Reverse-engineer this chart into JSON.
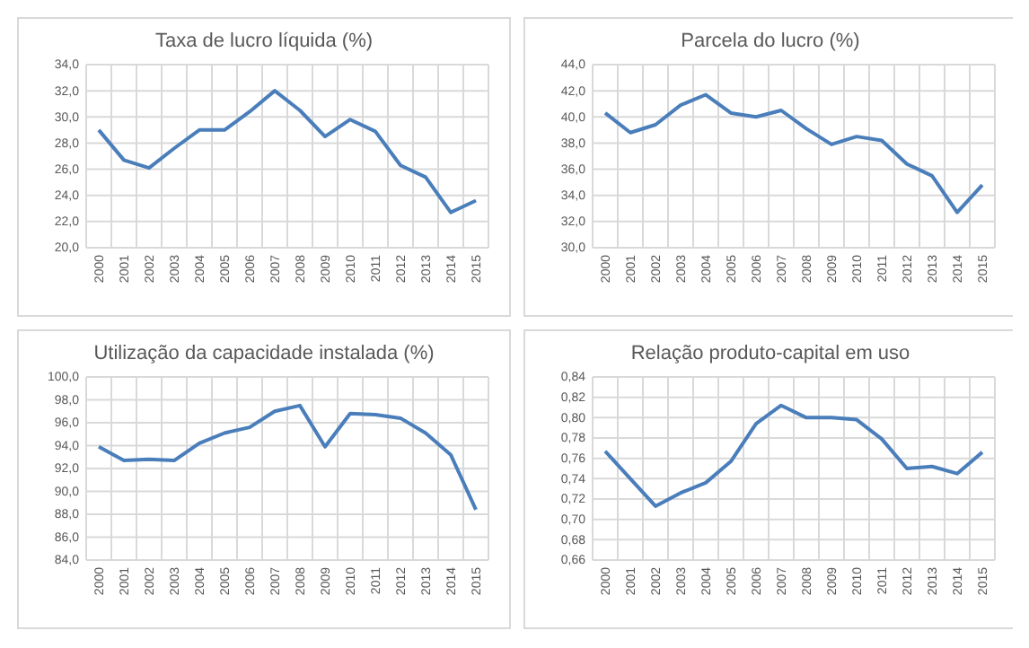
{
  "chart_data": [
    {
      "type": "line",
      "title": "Taxa de lucro líquida (%)",
      "categories": [
        "2000",
        "2001",
        "2002",
        "2003",
        "2004",
        "2005",
        "2006",
        "2007",
        "2008",
        "2009",
        "2010",
        "2011",
        "2012",
        "2013",
        "2014",
        "2015"
      ],
      "series": [
        {
          "color": "#4a7ebb",
          "values": [
            29.0,
            26.7,
            26.1,
            27.6,
            29.0,
            29.0,
            30.4,
            32.0,
            30.5,
            28.5,
            29.8,
            28.9,
            26.3,
            25.4,
            22.7,
            23.6
          ]
        }
      ],
      "ylim": [
        20,
        34
      ],
      "yticks": [
        {
          "value": 20,
          "label": "20,0"
        },
        {
          "value": 22,
          "label": "22,0"
        },
        {
          "value": 24,
          "label": "24,0"
        },
        {
          "value": 26,
          "label": "26,0"
        },
        {
          "value": 28,
          "label": "28,0"
        },
        {
          "value": 30,
          "label": "30,0"
        },
        {
          "value": 32,
          "label": "32,0"
        },
        {
          "value": 34,
          "label": "34,0"
        }
      ],
      "grid": true
    },
    {
      "type": "line",
      "title": "Parcela do lucro (%)",
      "categories": [
        "2000",
        "2001",
        "2002",
        "2003",
        "2004",
        "2005",
        "2006",
        "2007",
        "2008",
        "2009",
        "2010",
        "2011",
        "2012",
        "2013",
        "2014",
        "2015"
      ],
      "series": [
        {
          "color": "#4a7ebb",
          "values": [
            40.3,
            38.8,
            39.4,
            40.9,
            41.7,
            40.3,
            40.0,
            40.5,
            39.1,
            37.9,
            38.5,
            38.2,
            36.4,
            35.5,
            32.7,
            34.8
          ]
        }
      ],
      "ylim": [
        30,
        44
      ],
      "yticks": [
        {
          "value": 30,
          "label": "30,0"
        },
        {
          "value": 32,
          "label": "32,0"
        },
        {
          "value": 34,
          "label": "34,0"
        },
        {
          "value": 36,
          "label": "36,0"
        },
        {
          "value": 38,
          "label": "38,0"
        },
        {
          "value": 40,
          "label": "40,0"
        },
        {
          "value": 42,
          "label": "42,0"
        },
        {
          "value": 44,
          "label": "44,0"
        }
      ],
      "grid": true
    },
    {
      "type": "line",
      "title": "Utilização da capacidade instalada (%)",
      "categories": [
        "2000",
        "2001",
        "2002",
        "2003",
        "2004",
        "2005",
        "2006",
        "2007",
        "2008",
        "2009",
        "2010",
        "2011",
        "2012",
        "2013",
        "2014",
        "2015"
      ],
      "series": [
        {
          "color": "#4a7ebb",
          "values": [
            93.9,
            92.7,
            92.8,
            92.7,
            94.2,
            95.1,
            95.6,
            97.0,
            97.5,
            93.9,
            96.8,
            96.7,
            96.4,
            95.1,
            93.2,
            88.4
          ]
        }
      ],
      "ylim": [
        84,
        100
      ],
      "yticks": [
        {
          "value": 84,
          "label": "84,0"
        },
        {
          "value": 86,
          "label": "86,0"
        },
        {
          "value": 88,
          "label": "88,0"
        },
        {
          "value": 90,
          "label": "90,0"
        },
        {
          "value": 92,
          "label": "92,0"
        },
        {
          "value": 94,
          "label": "94,0"
        },
        {
          "value": 96,
          "label": "96,0"
        },
        {
          "value": 98,
          "label": "98,0"
        },
        {
          "value": 100,
          "label": "100,0"
        }
      ],
      "grid": true
    },
    {
      "type": "line",
      "title": "Relação produto-capital em uso",
      "categories": [
        "2000",
        "2001",
        "2002",
        "2003",
        "2004",
        "2005",
        "2006",
        "2007",
        "2008",
        "2009",
        "2010",
        "2011",
        "2012",
        "2013",
        "2014",
        "2015"
      ],
      "series": [
        {
          "color": "#4a7ebb",
          "values": [
            0.767,
            0.74,
            0.713,
            0.726,
            0.736,
            0.757,
            0.794,
            0.812,
            0.8,
            0.8,
            0.798,
            0.779,
            0.75,
            0.752,
            0.745,
            0.766
          ]
        }
      ],
      "ylim": [
        0.66,
        0.84
      ],
      "yticks": [
        {
          "value": 0.66,
          "label": "0,66"
        },
        {
          "value": 0.68,
          "label": "0,68"
        },
        {
          "value": 0.7,
          "label": "0,70"
        },
        {
          "value": 0.72,
          "label": "0,72"
        },
        {
          "value": 0.74,
          "label": "0,74"
        },
        {
          "value": 0.76,
          "label": "0,76"
        },
        {
          "value": 0.78,
          "label": "0,78"
        },
        {
          "value": 0.8,
          "label": "0,80"
        },
        {
          "value": 0.82,
          "label": "0,82"
        },
        {
          "value": 0.84,
          "label": "0,84"
        }
      ],
      "grid": true
    }
  ]
}
